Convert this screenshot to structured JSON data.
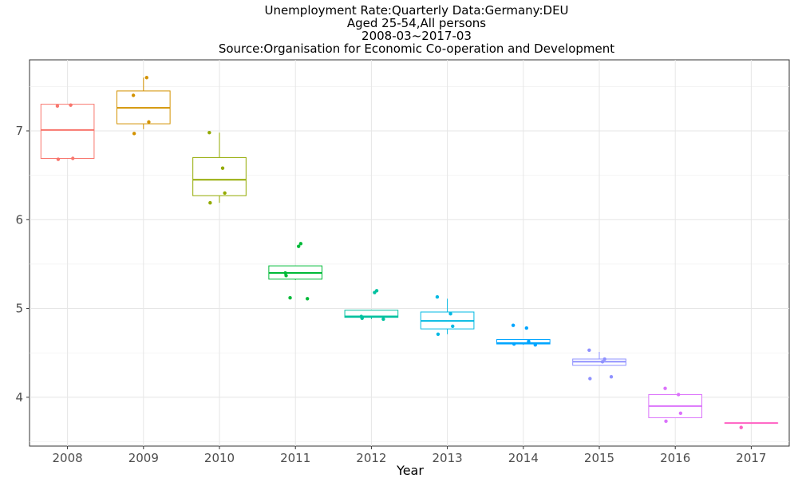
{
  "chart_data": {
    "type": "boxplot",
    "title_lines": [
      "Unemployment Rate:Quarterly Data:Germany:DEU",
      "Aged 25-54,All persons",
      "2008-03~2017-03",
      "Source:Organisation for Economic Co-operation and Development"
    ],
    "xlabel": "Year",
    "ylabel": "",
    "ylim": [
      3.45,
      7.8
    ],
    "yticks": [
      4,
      5,
      6,
      7
    ],
    "categories": [
      "2008",
      "2009",
      "2010",
      "2011",
      "2012",
      "2013",
      "2014",
      "2015",
      "2016",
      "2017"
    ],
    "grid": true,
    "legend": "none",
    "colors": [
      "#F8766D",
      "#D39200",
      "#93AA00",
      "#00BA38",
      "#00C19F",
      "#00B9E3",
      "#00A5FF",
      "#8F91FF",
      "#DB72FB",
      "#FF61C3"
    ],
    "boxes": [
      {
        "category": "2008",
        "min": 6.69,
        "q1": 6.69,
        "median": 7.01,
        "q3": 7.3,
        "max": 7.3,
        "points": [
          7.28,
          7.29,
          6.69,
          6.68
        ]
      },
      {
        "category": "2009",
        "min": 7.02,
        "q1": 7.08,
        "median": 7.26,
        "q3": 7.45,
        "max": 7.6,
        "points": [
          7.4,
          7.6,
          7.1,
          6.97
        ]
      },
      {
        "category": "2010",
        "min": 6.19,
        "q1": 6.27,
        "median": 6.45,
        "q3": 6.7,
        "max": 6.98,
        "points": [
          6.98,
          6.58,
          6.3,
          6.19
        ]
      },
      {
        "category": "2011",
        "min": 5.32,
        "q1": 5.33,
        "median": 5.4,
        "q3": 5.48,
        "max": 5.48,
        "points": [
          5.4,
          5.7,
          5.73,
          5.37,
          5.11,
          5.12
        ]
      },
      {
        "category": "2012",
        "min": 4.88,
        "q1": 4.9,
        "median": 4.91,
        "q3": 4.98,
        "max": 4.98,
        "points": [
          4.91,
          5.18,
          5.2,
          4.89,
          4.88
        ]
      },
      {
        "category": "2013",
        "min": 4.71,
        "q1": 4.77,
        "median": 4.86,
        "q3": 4.96,
        "max": 5.11,
        "points": [
          5.13,
          4.94,
          4.8,
          4.71
        ]
      },
      {
        "category": "2014",
        "min": 4.59,
        "q1": 4.6,
        "median": 4.61,
        "q3": 4.65,
        "max": 4.65,
        "points": [
          4.81,
          4.78,
          4.63,
          4.6,
          4.59
        ]
      },
      {
        "category": "2015",
        "min": 4.36,
        "q1": 4.36,
        "median": 4.4,
        "q3": 4.43,
        "max": 4.51,
        "points": [
          4.53,
          4.4,
          4.43,
          4.21,
          4.23
        ]
      },
      {
        "category": "2016",
        "min": 3.77,
        "q1": 3.77,
        "median": 3.9,
        "q3": 4.03,
        "max": 4.03,
        "points": [
          4.1,
          4.03,
          3.82,
          3.73
        ]
      },
      {
        "category": "2017",
        "min": 3.71,
        "q1": 3.71,
        "median": 3.71,
        "q3": 3.71,
        "max": 3.71,
        "points": [
          3.66
        ]
      }
    ]
  }
}
